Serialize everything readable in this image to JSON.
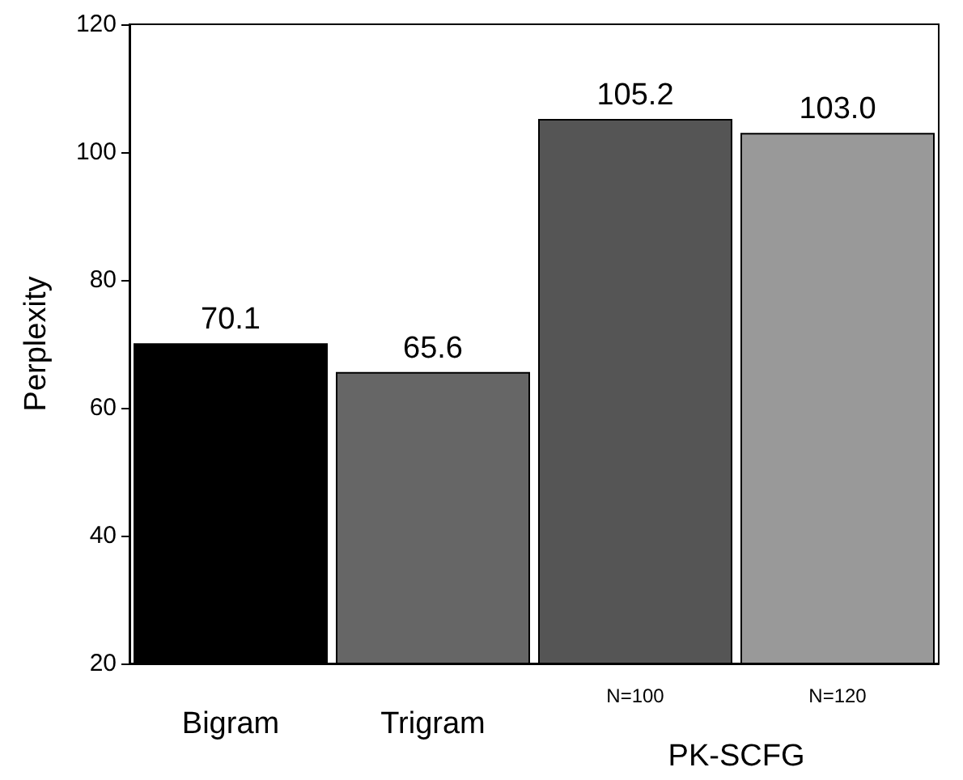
{
  "chart_data": {
    "type": "bar",
    "ylabel": "Perplexity",
    "categories": [
      "Bigram",
      "Trigram",
      "N=100",
      "N=120"
    ],
    "values": [
      70.1,
      65.6,
      105.2,
      103.0
    ],
    "value_labels": [
      "70.1",
      "65.6",
      "105.2",
      "103.0"
    ],
    "colors": [
      "#000000",
      "#666666",
      "#555555",
      "#999999"
    ],
    "ylim": [
      20,
      120
    ],
    "yticks": [
      20,
      40,
      60,
      80,
      100,
      120
    ],
    "grid": false,
    "annotations": [
      "PK-SCFG"
    ]
  }
}
